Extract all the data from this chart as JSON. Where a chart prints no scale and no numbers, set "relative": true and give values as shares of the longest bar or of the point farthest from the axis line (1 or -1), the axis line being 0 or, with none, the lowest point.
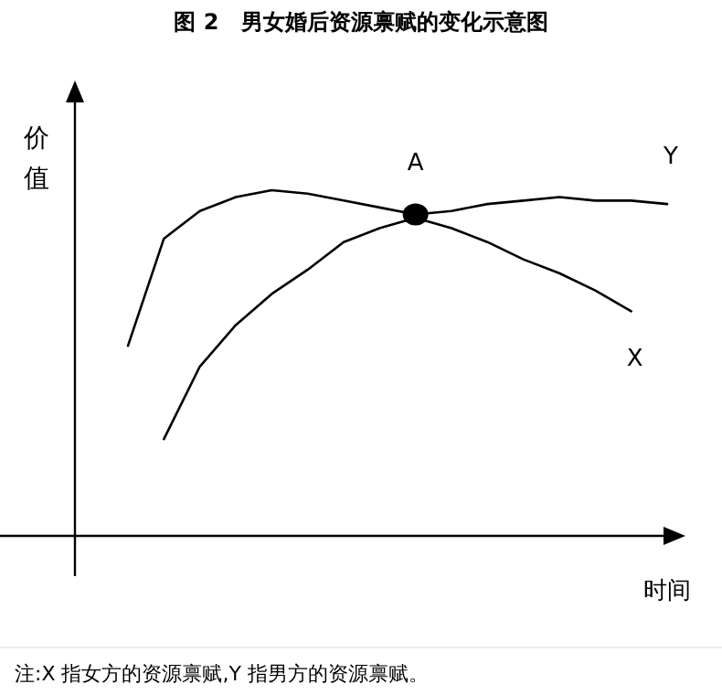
{
  "chart_data": {
    "type": "line",
    "title": "图 2　男女婚后资源禀赋的变化示意图",
    "xlabel": "时间",
    "ylabel": "价值",
    "relative": true,
    "legend": false,
    "line_style": "solid",
    "categories": [
      null,
      null,
      null,
      null,
      null,
      null,
      null,
      null,
      null,
      null,
      null,
      null,
      null,
      null,
      null,
      null
    ],
    "series": [
      {
        "name": "Y",
        "color": "#000000",
        "values": [
          0.55,
          0.86,
          0.94,
          0.98,
          1.0,
          0.99,
          0.97,
          0.95,
          0.93,
          0.94,
          0.96,
          0.97,
          0.98,
          0.97,
          0.97,
          0.96
        ]
      },
      {
        "name": "X",
        "color": "#000000",
        "values": [
          null,
          0.28,
          0.49,
          0.61,
          0.7,
          0.77,
          0.85,
          0.89,
          0.92,
          0.89,
          0.85,
          0.8,
          0.76,
          0.71,
          0.65,
          null
        ]
      }
    ],
    "annotations": [
      {
        "text": "A",
        "y": 0.93
      },
      "注:X 指女方的资源禀赋,Y 指男方的资源禀赋。"
    ]
  }
}
